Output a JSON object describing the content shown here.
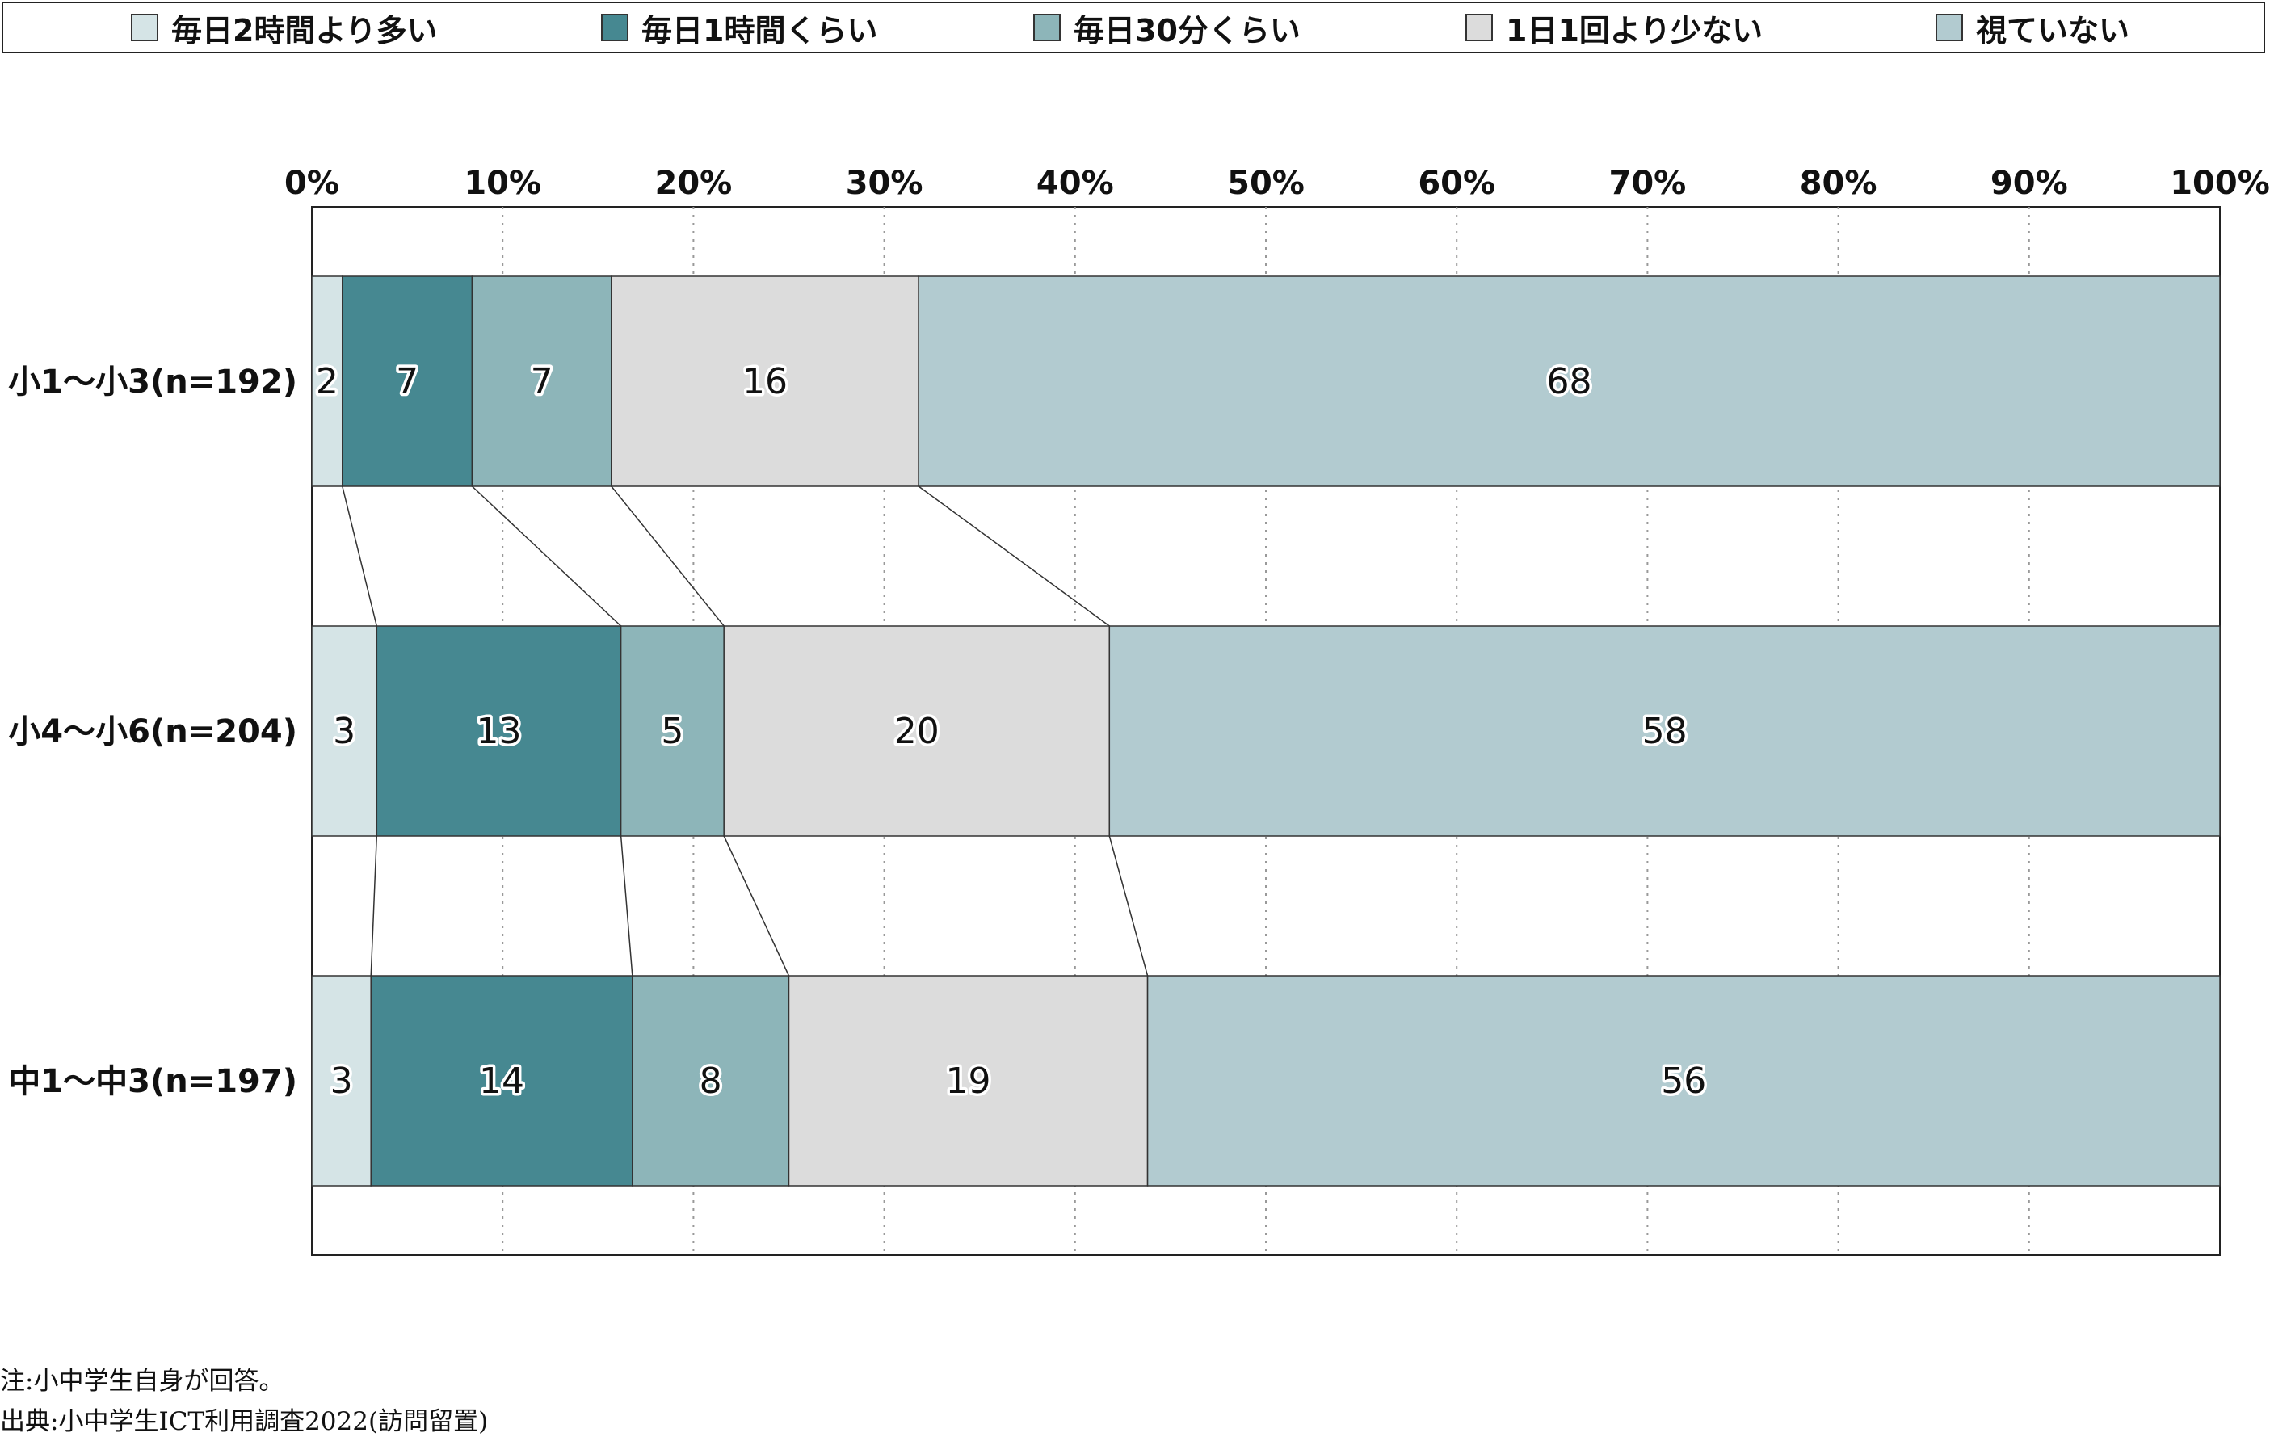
{
  "chart_data": {
    "type": "bar",
    "orientation": "horizontal",
    "stacked": true,
    "percent": true,
    "categories": [
      "小1〜小3(n=192)",
      "小4〜小6(n=204)",
      "中1〜中3(n=197)"
    ],
    "series": [
      {
        "name": "毎日2時間より多い",
        "color": "#d5e4e6",
        "values": [
          1.6,
          3.4,
          3.1
        ]
      },
      {
        "name": "毎日1時間くらい",
        "color": "#468891",
        "values": [
          6.8,
          12.8,
          13.7
        ]
      },
      {
        "name": "毎日30分くらい",
        "color": "#8db5b9",
        "values": [
          7.3,
          5.4,
          8.2
        ]
      },
      {
        "name": "1日1回より少ない",
        "color": "#dcdcdc",
        "values": [
          16.1,
          20.2,
          18.8
        ]
      },
      {
        "name": "視ていない",
        "color": "#b2cbd0",
        "values": [
          68.2,
          58.2,
          56.2
        ]
      }
    ],
    "data_labels": [
      [
        "2",
        "7",
        "7",
        "16",
        "68"
      ],
      [
        "3",
        "13",
        "5",
        "20",
        "58"
      ],
      [
        "3",
        "14",
        "8",
        "19",
        "56"
      ]
    ],
    "xlim": [
      0,
      100
    ],
    "xticks": [
      "0%",
      "10%",
      "20%",
      "30%",
      "40%",
      "50%",
      "60%",
      "70%",
      "80%",
      "90%",
      "100%"
    ],
    "grid": true,
    "legend_position": "top",
    "connector_lines": true
  },
  "notes": {
    "note": "注:小中学生自身が回答。",
    "source": "出典:小中学生ICT利用調査2022(訪問留置)"
  }
}
